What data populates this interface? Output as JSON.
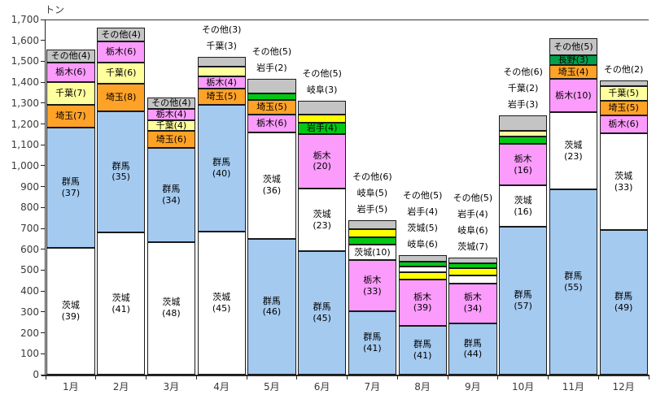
{
  "chart_data": {
    "type": "bar",
    "stacked": true,
    "unit_label": "トン",
    "ylim": [
      0,
      1700
    ],
    "ytick_step": 100,
    "y_tick_labels": [
      "0",
      "100",
      "200",
      "300",
      "400",
      "500",
      "600",
      "700",
      "800",
      "900",
      "1,000",
      "1,100",
      "1,200",
      "1,300",
      "1,400",
      "1,500",
      "1,600",
      "1,700"
    ],
    "categories": [
      "1月",
      "2月",
      "3月",
      "4月",
      "5月",
      "6月",
      "7月",
      "8月",
      "9月",
      "10月",
      "11月",
      "12月"
    ],
    "legend": "none",
    "grid": "top-border-only",
    "segment_value_meaning": "share in percent, shown in parentheses; segments listed bottom-to-top",
    "total_tons": [
      1555,
      1660,
      1325,
      1520,
      1415,
      1310,
      740,
      570,
      560,
      1240,
      1610,
      1410
    ],
    "bars": [
      {
        "month": "1月",
        "total": 1555,
        "segments": [
          {
            "name": "茨城",
            "value": 39,
            "label": "inside"
          },
          {
            "name": "群馬",
            "value": 37,
            "label": "inside"
          },
          {
            "name": "埼玉",
            "value": 7,
            "label": "inside"
          },
          {
            "name": "千葉",
            "value": 7,
            "label": "inside"
          },
          {
            "name": "栃木",
            "value": 6,
            "label": "inside"
          },
          {
            "name": "その他",
            "value": 4,
            "label": "inside"
          }
        ]
      },
      {
        "month": "2月",
        "total": 1660,
        "segments": [
          {
            "name": "茨城",
            "value": 41,
            "label": "inside"
          },
          {
            "name": "群馬",
            "value": 35,
            "label": "inside"
          },
          {
            "name": "埼玉",
            "value": 8,
            "label": "inside"
          },
          {
            "name": "千葉",
            "value": 6,
            "label": "inside"
          },
          {
            "name": "栃木",
            "value": 6,
            "label": "inside"
          },
          {
            "name": "その他",
            "value": 4,
            "label": "inside"
          }
        ]
      },
      {
        "month": "3月",
        "total": 1325,
        "segments": [
          {
            "name": "茨城",
            "value": 48,
            "label": "inside"
          },
          {
            "name": "群馬",
            "value": 34,
            "label": "inside"
          },
          {
            "name": "埼玉",
            "value": 6,
            "label": "inside"
          },
          {
            "name": "千葉",
            "value": 4,
            "label": "inside"
          },
          {
            "name": "栃木",
            "value": 4,
            "label": "inside"
          },
          {
            "name": "その他",
            "value": 4,
            "label": "inside"
          }
        ]
      },
      {
        "month": "4月",
        "total": 1520,
        "segments": [
          {
            "name": "茨城",
            "value": 45,
            "label": "inside"
          },
          {
            "name": "群馬",
            "value": 40,
            "label": "inside"
          },
          {
            "name": "埼玉",
            "value": 5,
            "label": "inside"
          },
          {
            "name": "栃木",
            "value": 4,
            "label": "inside"
          },
          {
            "name": "千葉",
            "value": 3,
            "label": "above"
          },
          {
            "name": "その他",
            "value": 3,
            "label": "above"
          }
        ]
      },
      {
        "month": "5月",
        "total": 1415,
        "segments": [
          {
            "name": "群馬",
            "value": 46,
            "label": "inside"
          },
          {
            "name": "茨城",
            "value": 36,
            "label": "inside"
          },
          {
            "name": "栃木",
            "value": 6,
            "label": "inside"
          },
          {
            "name": "埼玉",
            "value": 5,
            "label": "inside"
          },
          {
            "name": "岩手",
            "value": 2,
            "label": "above"
          },
          {
            "name": "その他",
            "value": 5,
            "label": "above"
          }
        ]
      },
      {
        "month": "6月",
        "total": 1310,
        "segments": [
          {
            "name": "群馬",
            "value": 45,
            "label": "inside"
          },
          {
            "name": "茨城",
            "value": 23,
            "label": "inside"
          },
          {
            "name": "栃木",
            "value": 20,
            "label": "inside"
          },
          {
            "name": "岩手",
            "value": 4,
            "label": "inside"
          },
          {
            "name": "岐阜",
            "value": 3,
            "label": "above"
          },
          {
            "name": "その他",
            "value": 5,
            "label": "above"
          }
        ]
      },
      {
        "month": "7月",
        "total": 740,
        "segments": [
          {
            "name": "群馬",
            "value": 41,
            "label": "inside"
          },
          {
            "name": "栃木",
            "value": 33,
            "label": "inside"
          },
          {
            "name": "茨城",
            "value": 10,
            "label": "inside"
          },
          {
            "name": "岩手",
            "value": 5,
            "label": "above"
          },
          {
            "name": "岐阜",
            "value": 5,
            "label": "above"
          },
          {
            "name": "その他",
            "value": 6,
            "label": "above"
          }
        ]
      },
      {
        "month": "8月",
        "total": 570,
        "segments": [
          {
            "name": "群馬",
            "value": 41,
            "label": "inside"
          },
          {
            "name": "栃木",
            "value": 39,
            "label": "inside"
          },
          {
            "name": "岐阜",
            "value": 6,
            "label": "above"
          },
          {
            "name": "茨城",
            "value": 5,
            "label": "above"
          },
          {
            "name": "岩手",
            "value": 4,
            "label": "above"
          },
          {
            "name": "その他",
            "value": 5,
            "label": "above"
          }
        ]
      },
      {
        "month": "9月",
        "total": 560,
        "segments": [
          {
            "name": "群馬",
            "value": 44,
            "label": "inside"
          },
          {
            "name": "栃木",
            "value": 34,
            "label": "inside"
          },
          {
            "name": "茨城",
            "value": 7,
            "label": "above"
          },
          {
            "name": "岐阜",
            "value": 6,
            "label": "above"
          },
          {
            "name": "岩手",
            "value": 4,
            "label": "above"
          },
          {
            "name": "その他",
            "value": 5,
            "label": "above"
          }
        ]
      },
      {
        "month": "10月",
        "total": 1240,
        "segments": [
          {
            "name": "群馬",
            "value": 57,
            "label": "inside"
          },
          {
            "name": "茨城",
            "value": 16,
            "label": "inside"
          },
          {
            "name": "栃木",
            "value": 16,
            "label": "inside"
          },
          {
            "name": "岩手",
            "value": 3,
            "label": "above"
          },
          {
            "name": "千葉",
            "value": 2,
            "label": "above"
          },
          {
            "name": "その他",
            "value": 6,
            "label": "above"
          }
        ]
      },
      {
        "month": "11月",
        "total": 1610,
        "segments": [
          {
            "name": "群馬",
            "value": 55,
            "label": "inside"
          },
          {
            "name": "茨城",
            "value": 23,
            "label": "inside"
          },
          {
            "name": "栃木",
            "value": 10,
            "label": "inside"
          },
          {
            "name": "埼玉",
            "value": 4,
            "label": "inside"
          },
          {
            "name": "長野",
            "value": 3,
            "label": "inside"
          },
          {
            "name": "その他",
            "value": 5,
            "label": "inside"
          }
        ]
      },
      {
        "month": "12月",
        "total": 1410,
        "segments": [
          {
            "name": "群馬",
            "value": 49,
            "label": "inside"
          },
          {
            "name": "茨城",
            "value": 33,
            "label": "inside"
          },
          {
            "name": "栃木",
            "value": 6,
            "label": "inside"
          },
          {
            "name": "埼玉",
            "value": 5,
            "label": "inside"
          },
          {
            "name": "千葉",
            "value": 5,
            "label": "inside"
          },
          {
            "name": "その他",
            "value": 2,
            "label": "above"
          }
        ]
      }
    ],
    "colors": {
      "茨城": "#FFFFFF",
      "群馬": "#A4CAF0",
      "埼玉": "#FFA228",
      "千葉": "#FFFF9E",
      "栃木": "#FB9BFB",
      "その他": "#C4C4C4",
      "岩手": "#00C814",
      "岐阜": "#FFFF00",
      "長野": "#00A04C"
    }
  }
}
